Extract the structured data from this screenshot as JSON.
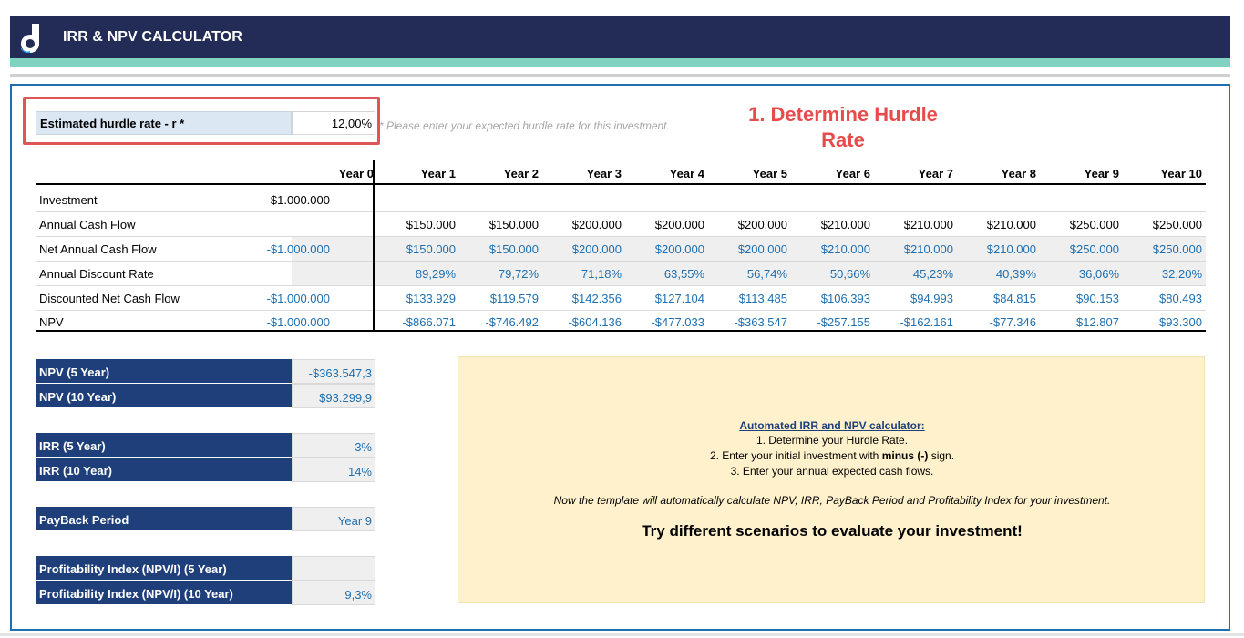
{
  "app": {
    "title": "IRR & NPV CALCULATOR"
  },
  "colors": {
    "header": "#232c56",
    "accent_teal": "#7fd3c0",
    "frame_blue": "#1f6fb0",
    "highlight_red": "#e05555",
    "summary_navy": "#1f3f7a",
    "info_bg": "#fff1cc"
  },
  "hurdle": {
    "label": "Estimated hurdle rate - r *",
    "value": "12,00%",
    "note": "* Please enter your expected hurdle rate for this investment.",
    "step_title_line1": "1. Determine Hurdle",
    "step_title_line2": "Rate"
  },
  "table": {
    "years": [
      "Year 0",
      "Year 1",
      "Year 2",
      "Year 3",
      "Year 4",
      "Year 5",
      "Year 6",
      "Year 7",
      "Year 8",
      "Year 9",
      "Year 10"
    ],
    "rows": [
      {
        "label": "Investment",
        "values": [
          "-$1.000.000",
          "",
          "",
          "",
          "",
          "",
          "",
          "",
          "",
          "",
          ""
        ]
      },
      {
        "label": "Annual Cash Flow",
        "values": [
          "",
          "$150.000",
          "$150.000",
          "$200.000",
          "$200.000",
          "$200.000",
          "$210.000",
          "$210.000",
          "$210.000",
          "$250.000",
          "$250.000"
        ]
      },
      {
        "label": "Net Annual Cash Flow",
        "values": [
          "-$1.000.000",
          "$150.000",
          "$150.000",
          "$200.000",
          "$200.000",
          "$200.000",
          "$210.000",
          "$210.000",
          "$210.000",
          "$250.000",
          "$250.000"
        ]
      },
      {
        "label": "Annual Discount Rate",
        "values": [
          "",
          "89,29%",
          "79,72%",
          "71,18%",
          "63,55%",
          "56,74%",
          "50,66%",
          "45,23%",
          "40,39%",
          "36,06%",
          "32,20%"
        ]
      },
      {
        "label": "Discounted Net Cash Flow",
        "values": [
          "-$1.000.000",
          "$133.929",
          "$119.579",
          "$142.356",
          "$127.104",
          "$113.485",
          "$106.393",
          "$94.993",
          "$84.815",
          "$90.153",
          "$80.493"
        ]
      },
      {
        "label": "NPV",
        "values": [
          "-$1.000.000",
          "-$866.071",
          "-$746.492",
          "-$604.136",
          "-$477.033",
          "-$363.547",
          "-$257.155",
          "-$162.161",
          "-$77.346",
          "$12.807",
          "$93.300"
        ]
      }
    ]
  },
  "summary": {
    "npv5_label": "NPV (5 Year)",
    "npv5_value": "-$363.547,3",
    "npv10_label": "NPV (10 Year)",
    "npv10_value": "$93.299,9",
    "irr5_label": "IRR (5 Year)",
    "irr5_value": "-3%",
    "irr10_label": "IRR (10 Year)",
    "irr10_value": "14%",
    "payback_label": "PayBack Period",
    "payback_value": "Year 9",
    "pi5_label": "Profitability Index (NPV/I) (5 Year)",
    "pi5_value": "-",
    "pi10_label": "Profitability Index (NPV/I) (10 Year)",
    "pi10_value": "9,3%"
  },
  "info": {
    "title": "Automated IRR and NPV calculator:",
    "step1": "1. Determine your Hurdle Rate.",
    "step2_pre": "2. Enter your initial investment with ",
    "step2_bold": "minus (-)",
    "step2_post": " sign.",
    "step3": "3. Enter your annual expected cash flows.",
    "note": "Now the template will automatically calculate NPV, IRR, PayBack Period and Profitability Index for your investment.",
    "cta": "Try different scenarios to evaluate your investment!"
  }
}
